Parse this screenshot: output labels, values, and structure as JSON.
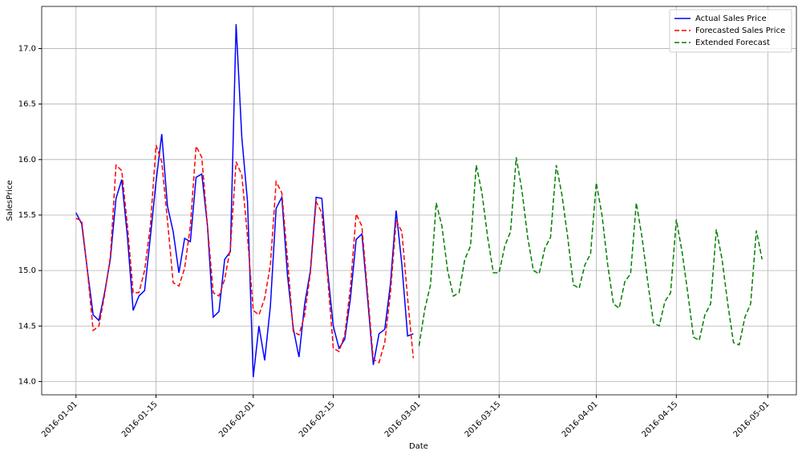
{
  "chart_data": {
    "type": "line",
    "x_label": "Date",
    "y_label": "SalesPrice",
    "xlim": [
      "2015-12-26",
      "2016-05-06"
    ],
    "xticks": [
      "2016-01-01",
      "2016-01-15",
      "2016-02-01",
      "2016-02-15",
      "2016-03-01",
      "2016-03-15",
      "2016-04-01",
      "2016-04-15",
      "2016-05-01"
    ],
    "ylim": [
      13.88,
      17.38
    ],
    "yticks": [
      {
        "value": 14,
        "label": "14.0"
      },
      14.5,
      {
        "value": 15,
        "label": "15.0"
      },
      15.5,
      {
        "value": 16,
        "label": "16.0"
      },
      16.5,
      {
        "value": 17,
        "label": "17.0"
      }
    ],
    "grid": true,
    "legend": "upper right",
    "series": [
      {
        "name": "Actual Sales Price",
        "color": "#0000ff",
        "dash": "solid",
        "x": [
          "2016-01-01",
          "2016-01-02",
          "2016-01-03",
          "2016-01-04",
          "2016-01-05",
          "2016-01-06",
          "2016-01-07",
          "2016-01-08",
          "2016-01-09",
          "2016-01-10",
          "2016-01-11",
          "2016-01-12",
          "2016-01-13",
          "2016-01-14",
          "2016-01-15",
          "2016-01-16",
          "2016-01-17",
          "2016-01-18",
          "2016-01-19",
          "2016-01-20",
          "2016-01-21",
          "2016-01-22",
          "2016-01-23",
          "2016-01-24",
          "2016-01-25",
          "2016-01-26",
          "2016-01-27",
          "2016-01-28",
          "2016-01-29",
          "2016-01-30",
          "2016-01-31",
          "2016-02-01",
          "2016-02-02",
          "2016-02-03",
          "2016-02-04",
          "2016-02-05",
          "2016-02-06",
          "2016-02-07",
          "2016-02-08",
          "2016-02-09",
          "2016-02-10",
          "2016-02-11",
          "2016-02-12",
          "2016-02-13",
          "2016-02-14",
          "2016-02-15",
          "2016-02-16",
          "2016-02-17",
          "2016-02-18",
          "2016-02-19",
          "2016-02-20",
          "2016-02-21",
          "2016-02-22",
          "2016-02-23",
          "2016-02-24",
          "2016-02-25",
          "2016-02-26",
          "2016-02-27",
          "2016-02-28",
          "2016-02-29"
        ],
        "values": [
          15.52,
          15.42,
          15.0,
          14.6,
          14.55,
          14.8,
          15.1,
          15.65,
          15.82,
          15.3,
          14.64,
          14.77,
          14.82,
          15.3,
          15.8,
          16.23,
          15.58,
          15.35,
          14.98,
          15.29,
          15.26,
          15.84,
          15.87,
          15.4,
          14.58,
          14.63,
          15.1,
          15.17,
          17.22,
          16.2,
          15.62,
          14.04,
          14.5,
          14.19,
          14.68,
          15.56,
          15.66,
          14.95,
          14.48,
          14.22,
          14.7,
          15.0,
          15.66,
          15.65,
          15.0,
          14.5,
          14.3,
          14.38,
          14.75,
          15.28,
          15.33,
          14.75,
          14.15,
          14.43,
          14.47,
          14.88,
          15.54,
          15.05,
          14.41,
          14.43
        ]
      },
      {
        "name": "Forecasted Sales Price",
        "color": "#ff0000",
        "dash": "dashed",
        "x": [
          "2016-01-01",
          "2016-01-02",
          "2016-01-03",
          "2016-01-04",
          "2016-01-05",
          "2016-01-06",
          "2016-01-07",
          "2016-01-08",
          "2016-01-09",
          "2016-01-10",
          "2016-01-11",
          "2016-01-12",
          "2016-01-13",
          "2016-01-14",
          "2016-01-15",
          "2016-01-16",
          "2016-01-17",
          "2016-01-18",
          "2016-01-19",
          "2016-01-20",
          "2016-01-21",
          "2016-01-22",
          "2016-01-23",
          "2016-01-24",
          "2016-01-25",
          "2016-01-26",
          "2016-01-27",
          "2016-01-28",
          "2016-01-29",
          "2016-01-30",
          "2016-01-31",
          "2016-02-01",
          "2016-02-02",
          "2016-02-03",
          "2016-02-04",
          "2016-02-05",
          "2016-02-06",
          "2016-02-07",
          "2016-02-08",
          "2016-02-09",
          "2016-02-10",
          "2016-02-11",
          "2016-02-12",
          "2016-02-13",
          "2016-02-14",
          "2016-02-15",
          "2016-02-16",
          "2016-02-17",
          "2016-02-18",
          "2016-02-19",
          "2016-02-20",
          "2016-02-21",
          "2016-02-22",
          "2016-02-23",
          "2016-02-24",
          "2016-02-25",
          "2016-02-26",
          "2016-02-27",
          "2016-02-28",
          "2016-02-29"
        ],
        "values": [
          15.47,
          15.45,
          15.0,
          14.46,
          14.5,
          14.78,
          15.12,
          15.95,
          15.9,
          15.4,
          14.8,
          14.8,
          15.0,
          15.4,
          16.13,
          15.98,
          15.45,
          14.89,
          14.86,
          15.02,
          15.4,
          16.12,
          16.02,
          15.4,
          14.8,
          14.77,
          14.92,
          15.2,
          15.98,
          15.86,
          15.3,
          14.64,
          14.6,
          14.75,
          15.05,
          15.8,
          15.7,
          15.1,
          14.45,
          14.42,
          14.6,
          14.98,
          15.62,
          15.52,
          14.95,
          14.3,
          14.27,
          14.42,
          14.85,
          15.51,
          15.4,
          14.8,
          14.2,
          14.17,
          14.35,
          14.8,
          15.45,
          15.35,
          14.75,
          14.21
        ]
      },
      {
        "name": "Extended Forecast",
        "color": "#008000",
        "dash": "dashed",
        "x": [
          "2016-03-01",
          "2016-03-02",
          "2016-03-03",
          "2016-03-04",
          "2016-03-05",
          "2016-03-06",
          "2016-03-07",
          "2016-03-08",
          "2016-03-09",
          "2016-03-10",
          "2016-03-11",
          "2016-03-12",
          "2016-03-13",
          "2016-03-14",
          "2016-03-15",
          "2016-03-16",
          "2016-03-17",
          "2016-03-18",
          "2016-03-19",
          "2016-03-20",
          "2016-03-21",
          "2016-03-22",
          "2016-03-23",
          "2016-03-24",
          "2016-03-25",
          "2016-03-26",
          "2016-03-27",
          "2016-03-28",
          "2016-03-29",
          "2016-03-30",
          "2016-03-31",
          "2016-04-01",
          "2016-04-02",
          "2016-04-03",
          "2016-04-04",
          "2016-04-05",
          "2016-04-06",
          "2016-04-07",
          "2016-04-08",
          "2016-04-09",
          "2016-04-10",
          "2016-04-11",
          "2016-04-12",
          "2016-04-13",
          "2016-04-14",
          "2016-04-15",
          "2016-04-16",
          "2016-04-17",
          "2016-04-18",
          "2016-04-19",
          "2016-04-20",
          "2016-04-21",
          "2016-04-22",
          "2016-04-23",
          "2016-04-24",
          "2016-04-25",
          "2016-04-26",
          "2016-04-27",
          "2016-04-28",
          "2016-04-29",
          "2016-04-30"
        ],
        "values": [
          14.32,
          14.65,
          14.87,
          15.61,
          15.4,
          15.0,
          14.77,
          14.8,
          15.1,
          15.22,
          15.95,
          15.7,
          15.3,
          14.98,
          14.98,
          15.22,
          15.35,
          16.02,
          15.72,
          15.3,
          15.0,
          14.97,
          15.2,
          15.3,
          15.95,
          15.68,
          15.3,
          14.87,
          14.84,
          15.05,
          15.15,
          15.79,
          15.5,
          15.05,
          14.7,
          14.66,
          14.9,
          14.97,
          15.61,
          15.3,
          14.9,
          14.53,
          14.5,
          14.72,
          14.8,
          15.46,
          15.17,
          14.8,
          14.4,
          14.37,
          14.6,
          14.7,
          15.37,
          15.1,
          14.7,
          14.35,
          14.33,
          14.58,
          14.7,
          15.36,
          15.1
        ]
      }
    ]
  }
}
